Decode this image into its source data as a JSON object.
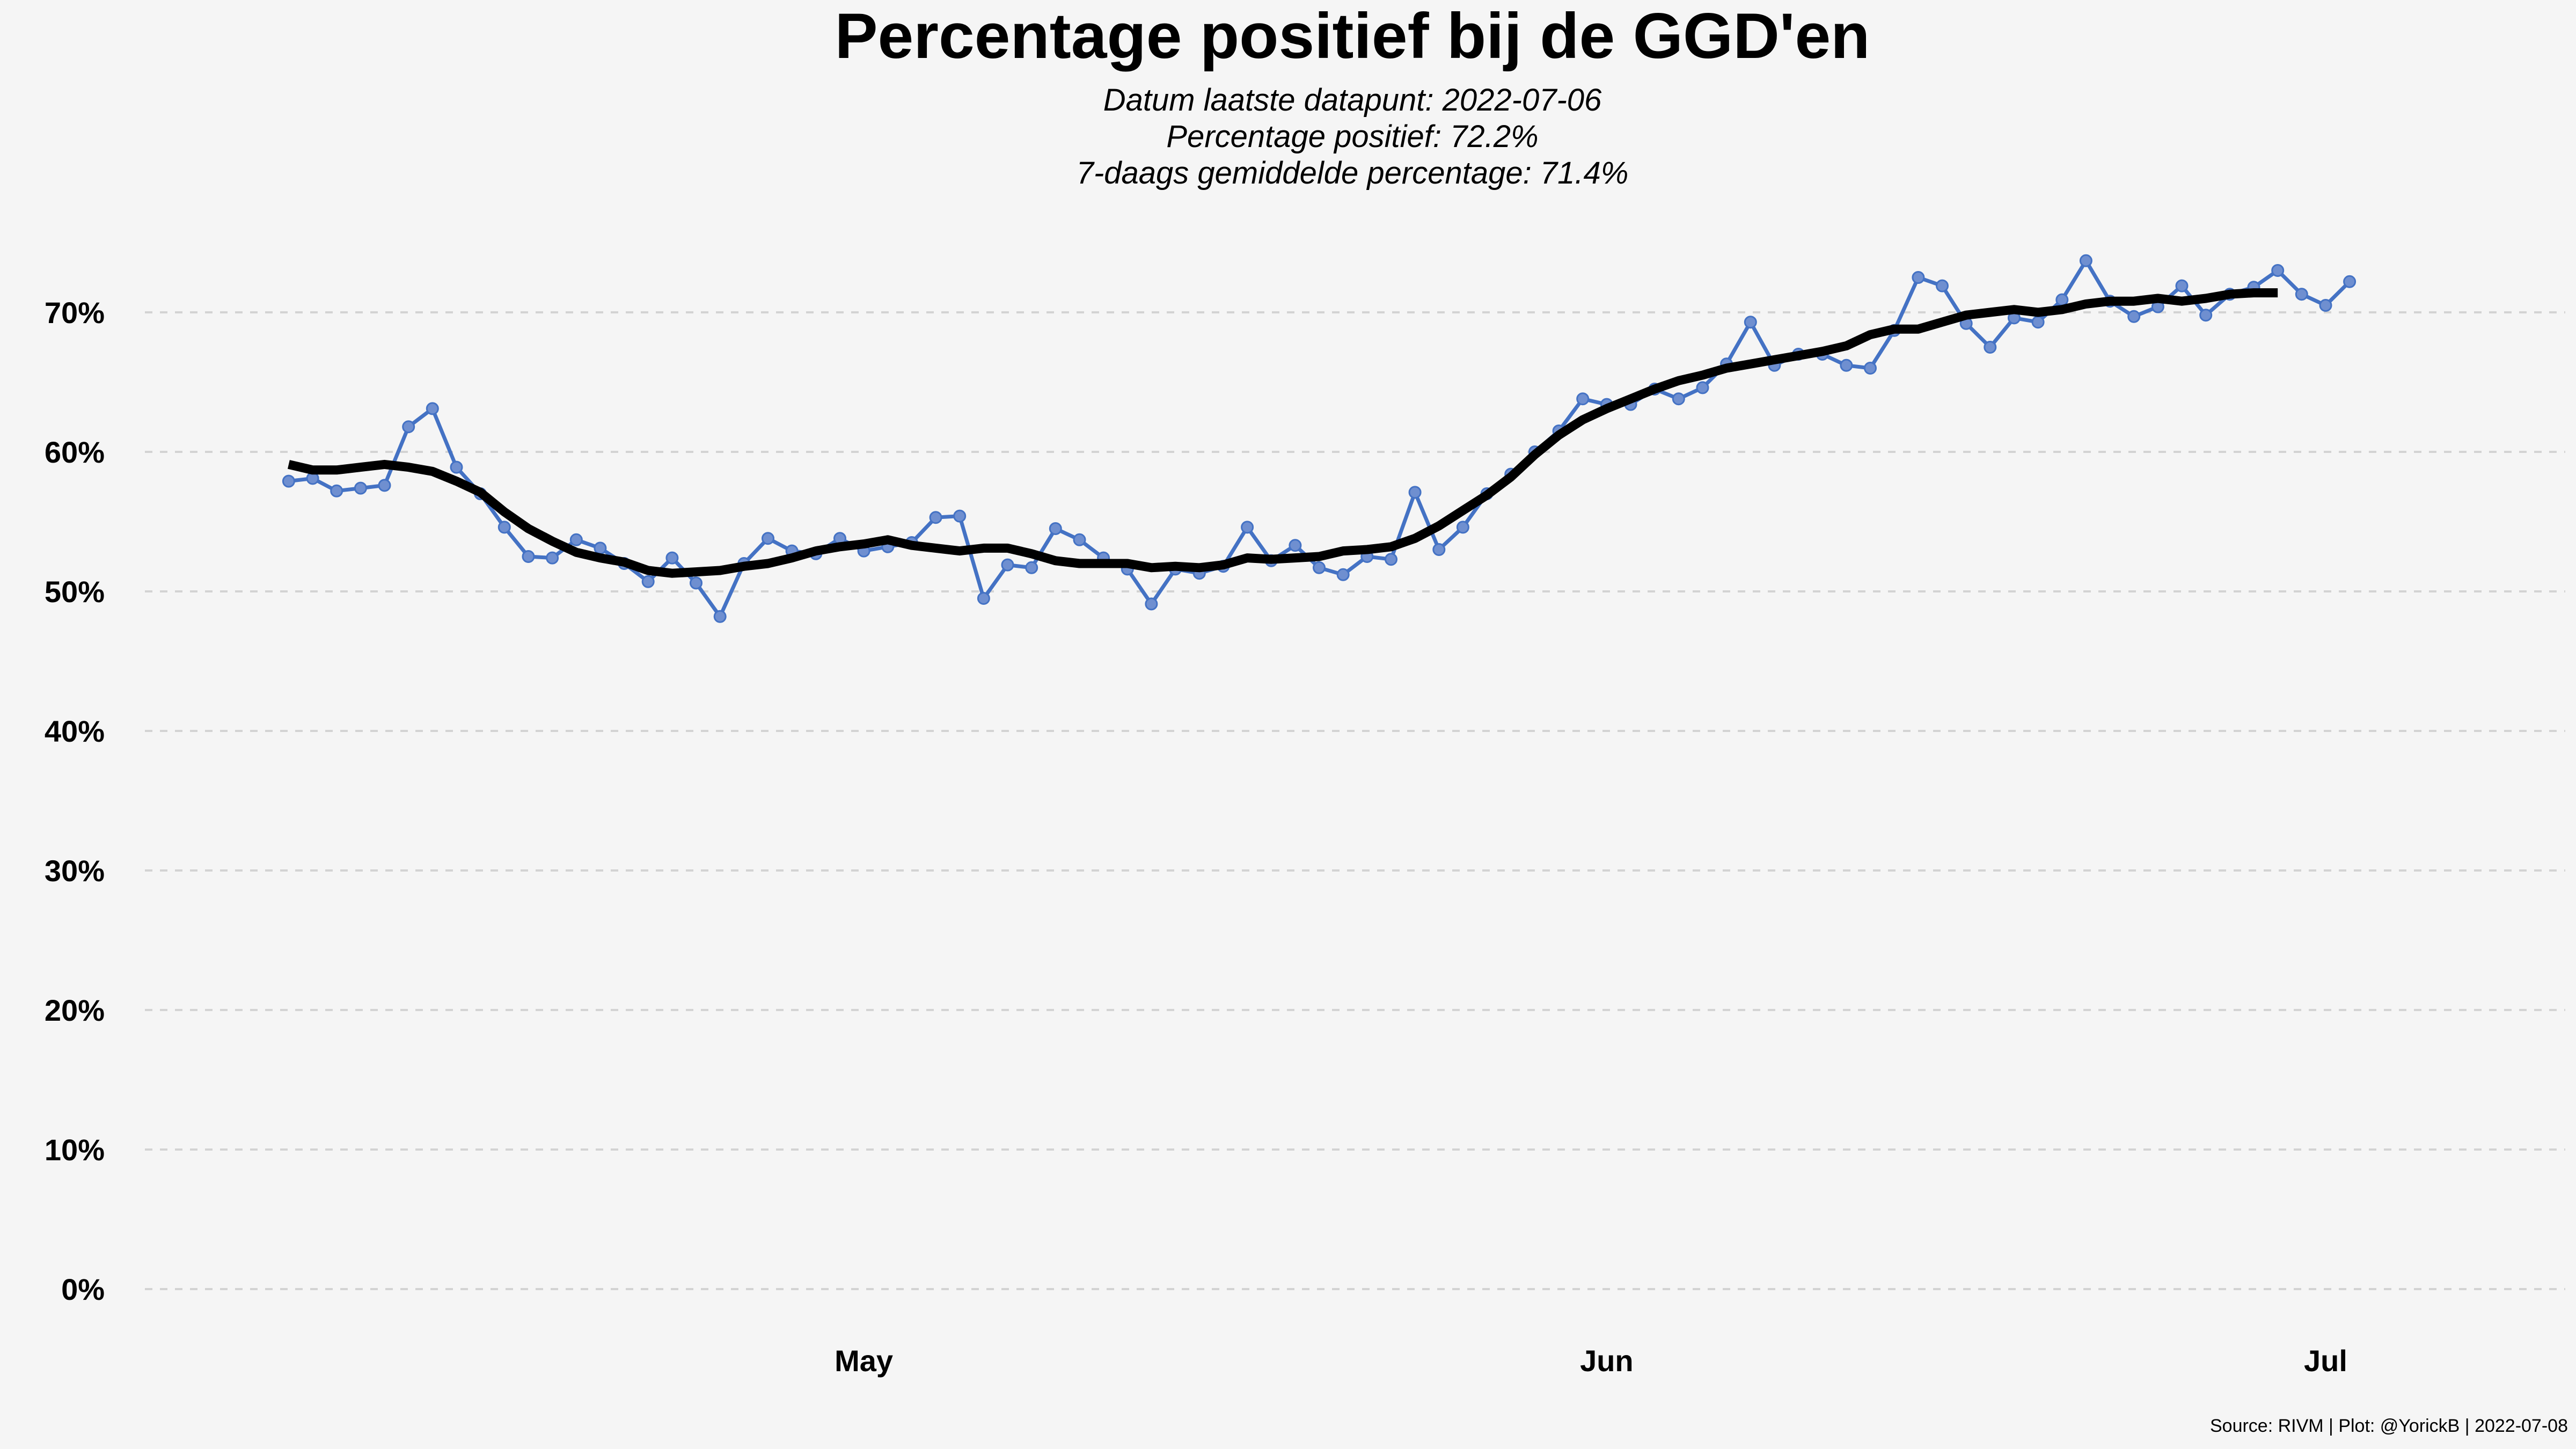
{
  "chart_data": {
    "type": "line",
    "title": "Percentage positief bij de GGD'en",
    "subtitle_lines": [
      "Datum laatste datapunt: 2022-07-06",
      "Percentage positief: 72.2%",
      "7-daags gemiddelde percentage: 71.4%"
    ],
    "caption": "Source: RIVM | Plot: @YorickB |  2022-07-08",
    "xlabel": "",
    "ylabel": "",
    "x_start": "2022-04-07",
    "x_end": "2022-07-06",
    "xlim": [
      "2022-04-01",
      "2022-07-11"
    ],
    "ylim": [
      -3,
      77
    ],
    "yticks": [
      0,
      10,
      20,
      30,
      40,
      50,
      60,
      70
    ],
    "ytick_labels": [
      "0%",
      "10%",
      "20%",
      "30%",
      "40%",
      "50%",
      "60%",
      "70%"
    ],
    "xticks": [
      {
        "date": "2022-05-01",
        "label": "May"
      },
      {
        "date": "2022-06-01",
        "label": "Jun"
      },
      {
        "date": "2022-07-01",
        "label": "Jul"
      }
    ],
    "grid": "horizontal-dashed",
    "legend": "none",
    "colors": {
      "daily": "#4472c4",
      "avg": "#000000",
      "grid": "#d3d3d3",
      "background": "#f5f5f5"
    },
    "series": [
      {
        "values": [
          57.9,
          58.1,
          57.2,
          57.4,
          57.6,
          61.8,
          63.1,
          58.9,
          57.0,
          54.6,
          52.5,
          52.4,
          53.7,
          53.1,
          52.0,
          50.7,
          52.4,
          50.6,
          48.2,
          52.0,
          53.8,
          52.9,
          52.7,
          53.8,
          52.9,
          53.2,
          53.5,
          55.3,
          55.4,
          49.5,
          51.9,
          51.7,
          54.5,
          53.7,
          52.4,
          51.6,
          49.1,
          51.6,
          51.3,
          51.8,
          54.6,
          52.2,
          53.3,
          51.7,
          51.2,
          52.5,
          52.3,
          57.1,
          53.0,
          54.6,
          57.0,
          58.4,
          60.0,
          61.5,
          63.8,
          63.4,
          63.4,
          64.5,
          63.8,
          64.6,
          66.3,
          69.3,
          66.2,
          67.0,
          67.0,
          66.2,
          66.0,
          68.7,
          72.5,
          71.9,
          69.2,
          67.5,
          69.6,
          69.3,
          70.9,
          73.7,
          70.8,
          69.7,
          70.4,
          71.9,
          69.8,
          71.3,
          71.8,
          73.0,
          71.3,
          70.5,
          72.2
        ]
      },
      {
        "values": [
          59.1,
          58.7,
          58.7,
          58.9,
          59.1,
          58.9,
          58.6,
          57.9,
          57.1,
          55.7,
          54.5,
          53.6,
          52.8,
          52.4,
          52.1,
          51.5,
          51.3,
          51.4,
          51.5,
          51.8,
          52.0,
          52.4,
          52.9,
          53.2,
          53.4,
          53.7,
          53.3,
          53.1,
          52.9,
          53.1,
          53.1,
          52.7,
          52.2,
          52.0,
          52.0,
          52.0,
          51.7,
          51.8,
          51.7,
          51.9,
          52.4,
          52.3,
          52.4,
          52.5,
          52.9,
          53.0,
          53.2,
          53.8,
          54.7,
          55.8,
          56.9,
          58.2,
          59.8,
          61.2,
          62.3,
          63.1,
          63.8,
          64.5,
          65.1,
          65.5,
          66.0,
          66.3,
          66.6,
          66.9,
          67.2,
          67.6,
          68.4,
          68.8,
          68.8,
          69.3,
          69.8,
          70.0,
          70.2,
          70.0,
          70.2,
          70.6,
          70.8,
          70.8,
          71.0,
          70.8,
          71.0,
          71.3,
          71.4,
          71.4
        ]
      }
    ]
  }
}
